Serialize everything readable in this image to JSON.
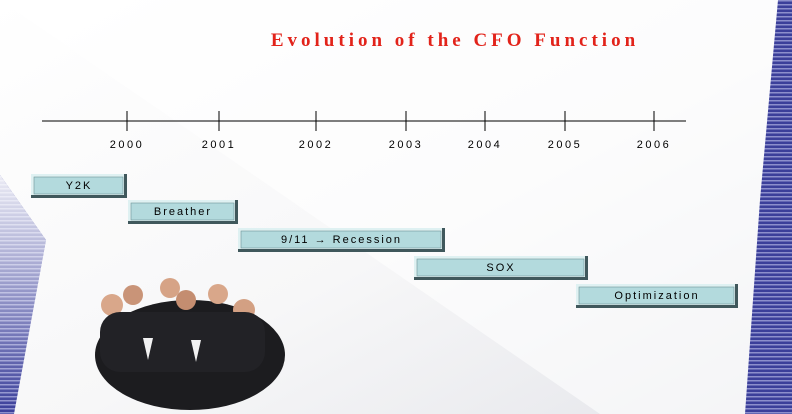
{
  "title": "Evolution of the CFO Function",
  "timeline": {
    "years": [
      "2000",
      "2001",
      "2002",
      "2003",
      "2004",
      "2005",
      "2006"
    ]
  },
  "phases": [
    {
      "label": "Y2K"
    },
    {
      "label": "Breather"
    },
    {
      "label": "9/11 → Recession"
    },
    {
      "label": "SOX"
    },
    {
      "label": "Optimization"
    }
  ]
}
